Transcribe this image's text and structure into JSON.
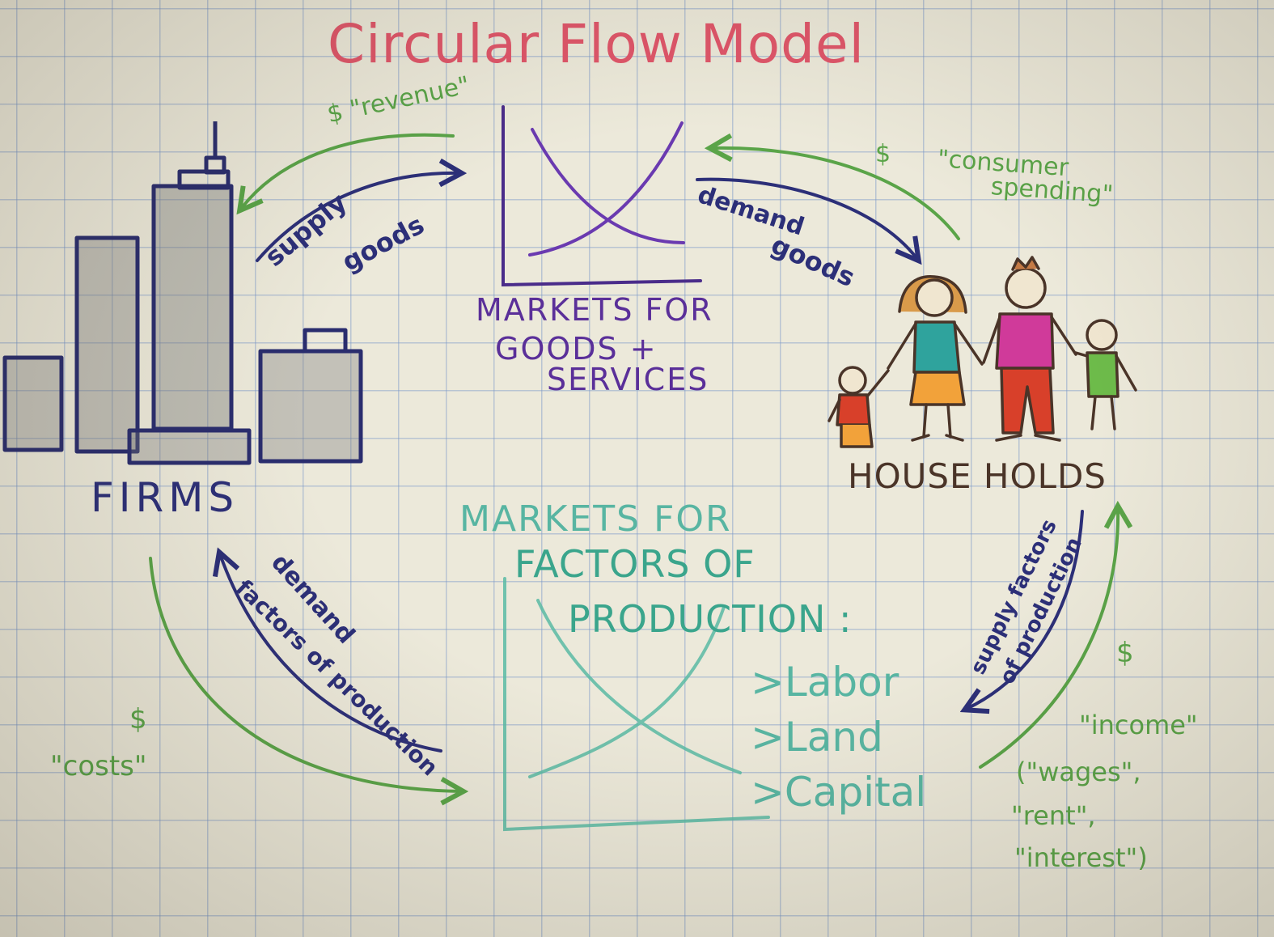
{
  "title": "Circular Flow Model",
  "firms": {
    "label": "FIRMS"
  },
  "households": {
    "label": "HOUSE HOLDS"
  },
  "goods_market": {
    "line1": "MARKETS FOR",
    "line2": "GOODS +",
    "line3": "SERVICES"
  },
  "factor_market": {
    "line1": "MARKETS FOR",
    "line2": "FACTORS OF",
    "line3": "PRODUCTION :",
    "items": [
      ">Labor",
      ">Land",
      ">Capital"
    ]
  },
  "flows": {
    "revenue": {
      "symbol": "$",
      "label": "\"revenue\""
    },
    "supply_goods": {
      "line1": "supply",
      "line2": "goods"
    },
    "demand_goods": {
      "line1": "demand",
      "line2": "goods"
    },
    "consumer_spending": {
      "symbol": "$",
      "line1": "\"consumer",
      "line2": "spending\""
    },
    "demand_factors": {
      "line1": "demand",
      "line2": "factors of production"
    },
    "costs": {
      "symbol": "$",
      "label": "\"costs\""
    },
    "supply_factors": {
      "line1": "supply factors",
      "line2": "of production"
    },
    "income": {
      "symbol": "$",
      "line1": "\"income\"",
      "line2": "(\"wages\",",
      "line3": "\"rent\",",
      "line4": "\"interest\")"
    }
  },
  "colors": {
    "title": "#e0566a",
    "money_flow": "#5aa448",
    "real_flow": "#2c2f78",
    "goods_market": "#5a2f99",
    "factor_market": "#58b5a2",
    "grid": "#7896c8"
  },
  "icons": [
    "city-buildings-icon",
    "family-icon",
    "supply-demand-graph-icon"
  ]
}
